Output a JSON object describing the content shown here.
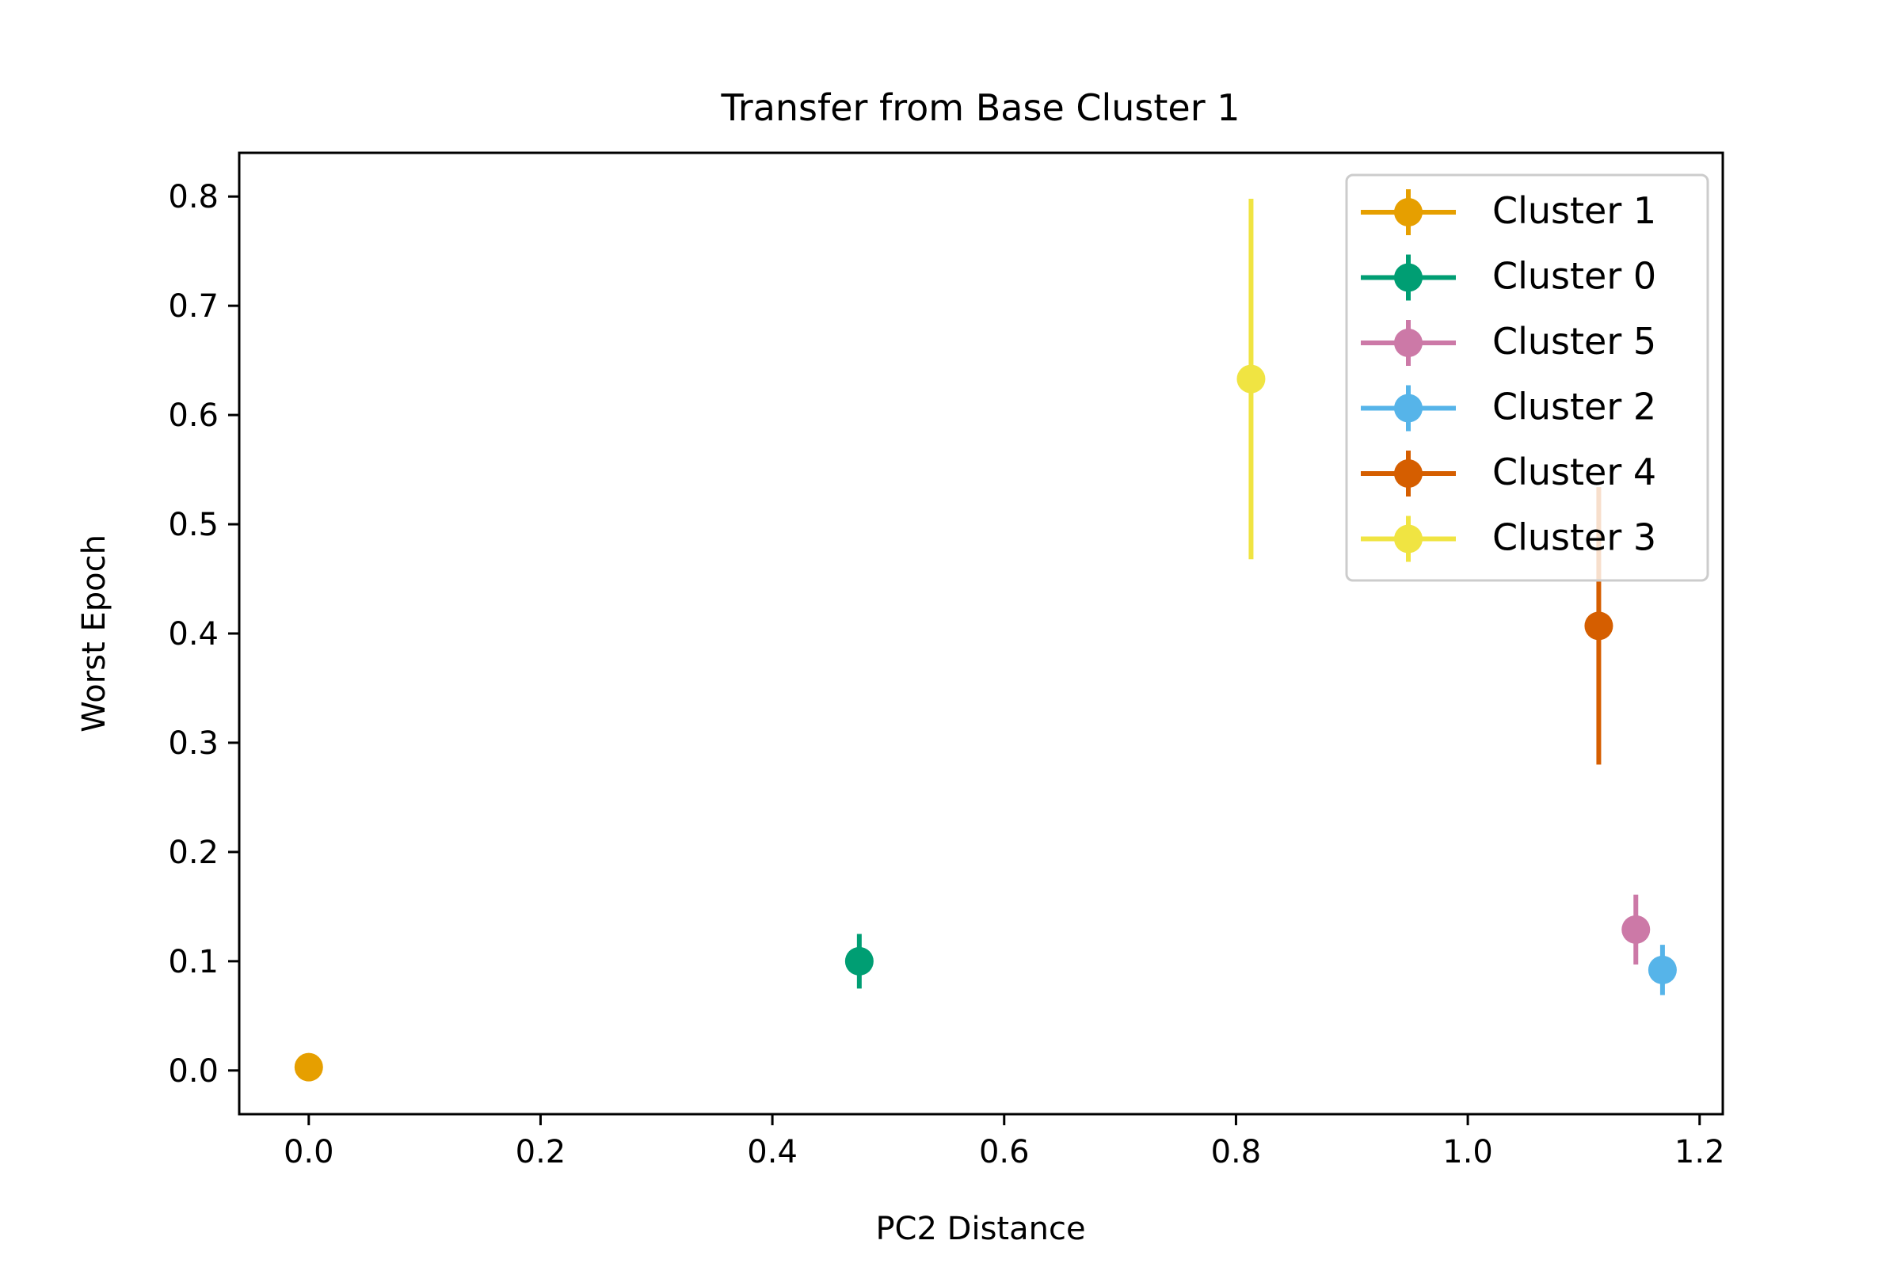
{
  "chart_data": {
    "type": "scatter",
    "title": "Transfer from Base Cluster 1",
    "xlabel": "PC2 Distance",
    "ylabel": "Worst Epoch",
    "xlim": [
      -0.06,
      1.22
    ],
    "ylim": [
      -0.04,
      0.84
    ],
    "xticks": [
      0.0,
      0.2,
      0.4,
      0.6,
      0.8,
      1.0,
      1.2
    ],
    "xtick_labels": [
      "0.0",
      "0.2",
      "0.4",
      "0.6",
      "0.8",
      "1.0",
      "1.2"
    ],
    "yticks": [
      0.0,
      0.1,
      0.2,
      0.3,
      0.4,
      0.5,
      0.6,
      0.7,
      0.8
    ],
    "ytick_labels": [
      "0.0",
      "0.1",
      "0.2",
      "0.3",
      "0.4",
      "0.5",
      "0.6",
      "0.7",
      "0.8"
    ],
    "grid": false,
    "legend_position": "top-right",
    "series": [
      {
        "name": "Cluster 1",
        "color": "#E69F00",
        "x": 0.0,
        "y": 0.003,
        "yerr": 0.0
      },
      {
        "name": "Cluster 0",
        "color": "#009E73",
        "x": 0.475,
        "y": 0.1,
        "yerr": 0.025
      },
      {
        "name": "Cluster 5",
        "color": "#CC79A7",
        "x": 1.145,
        "y": 0.129,
        "yerr": 0.032
      },
      {
        "name": "Cluster 2",
        "color": "#56B4E9",
        "x": 1.168,
        "y": 0.092,
        "yerr": 0.023
      },
      {
        "name": "Cluster 4",
        "color": "#D55E00",
        "x": 1.113,
        "y": 0.407,
        "yerr": 0.127
      },
      {
        "name": "Cluster 3",
        "color": "#F0E442",
        "x": 0.813,
        "y": 0.633,
        "yerr": 0.165
      }
    ]
  }
}
